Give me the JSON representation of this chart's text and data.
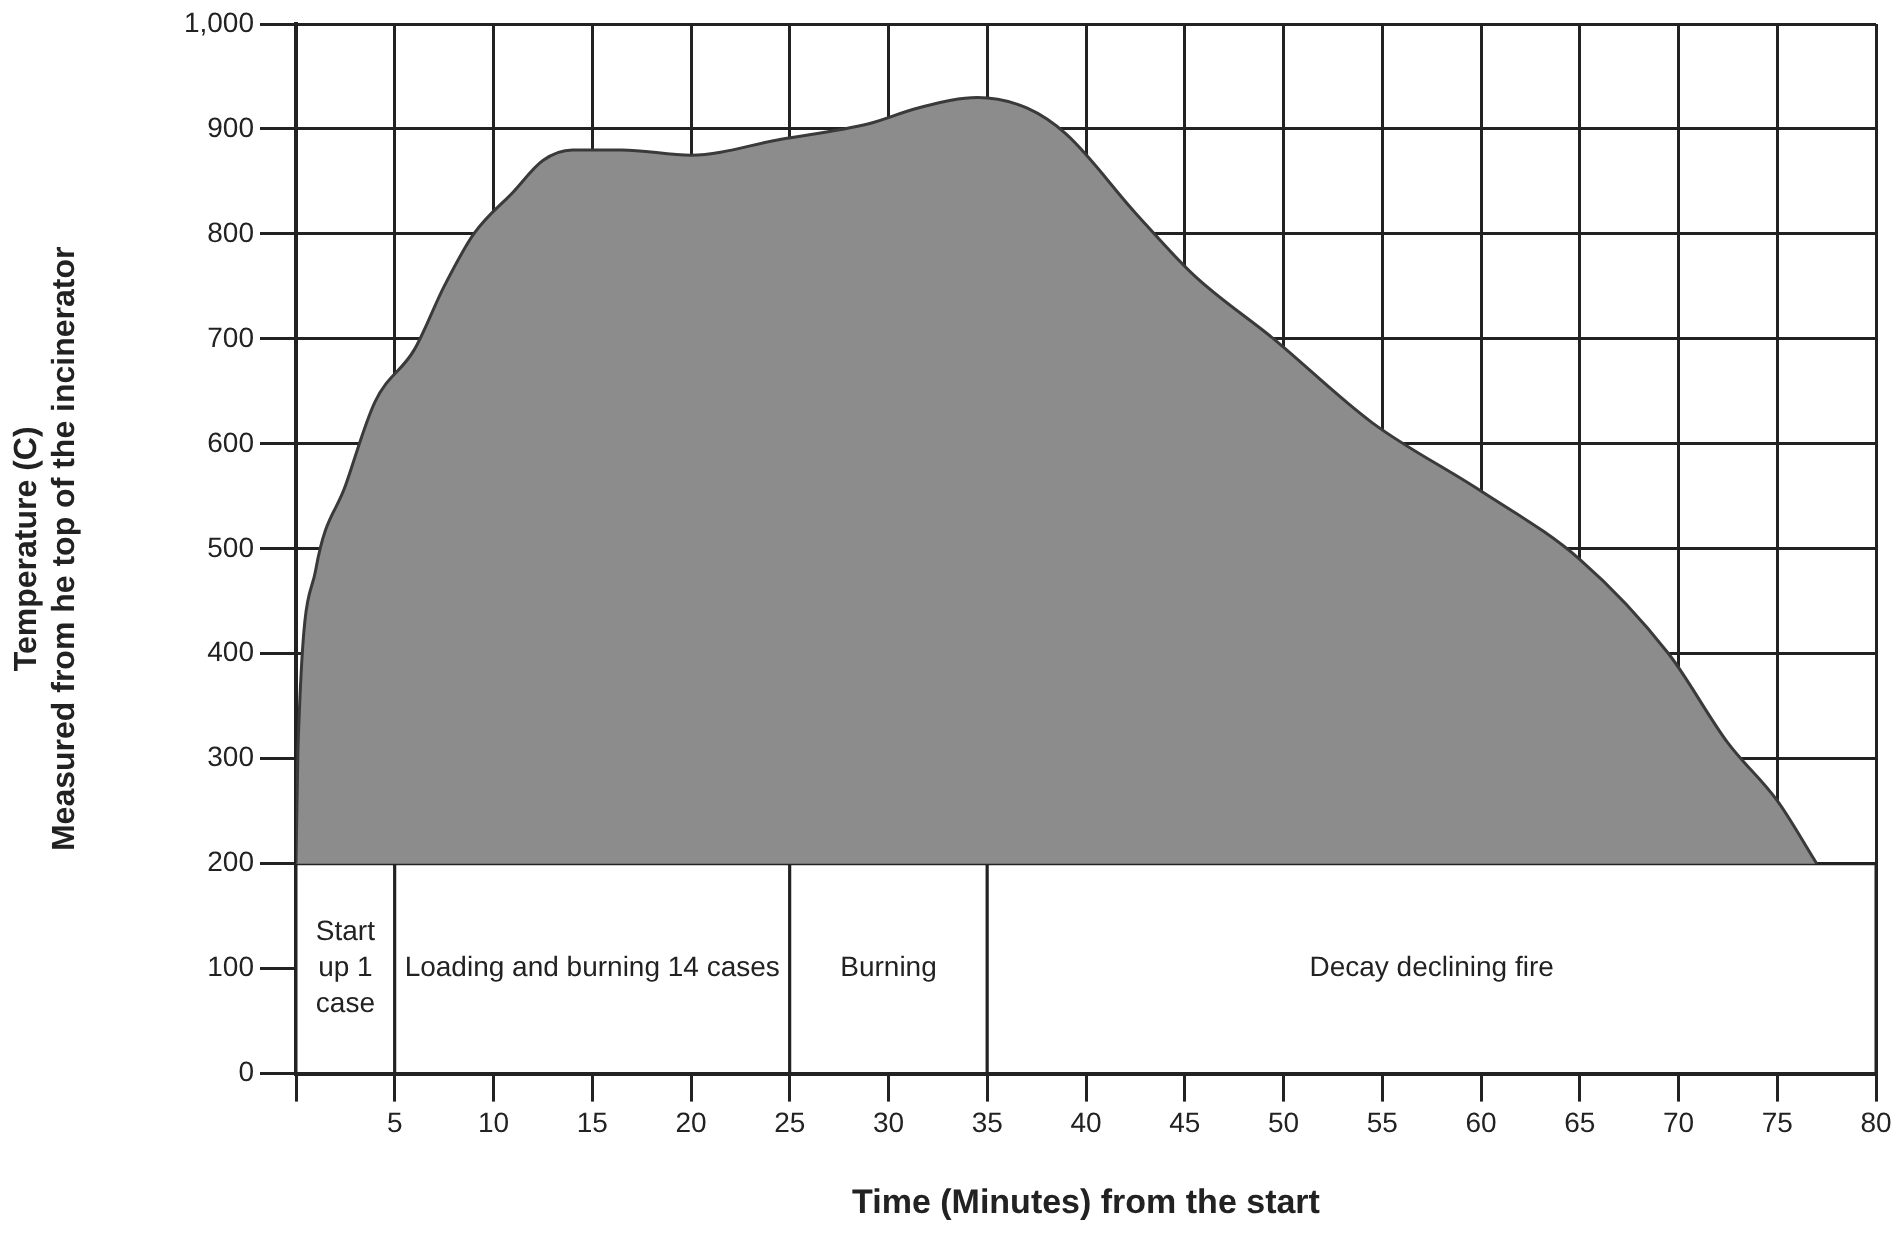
{
  "chart_data": {
    "type": "area",
    "xlabel": "Time (Minutes) from the start",
    "ylabel": "Temperature (C)\nMeasured from he top of the incinerator",
    "x": [
      0,
      0.1,
      1,
      2.5,
      4,
      6,
      7.5,
      9,
      11,
      12.5,
      14,
      16.5,
      20,
      24.5,
      29,
      31.5,
      34.5,
      37,
      39,
      42.5,
      45.5,
      49.5,
      54.5,
      60,
      65,
      69.5,
      72.5,
      75,
      77
    ],
    "series": [
      {
        "color": "#8c8c8c",
        "values": [
          200,
          310,
          480,
          560,
          640,
          690,
          750,
          800,
          840,
          870,
          880,
          880,
          875,
          890,
          905,
          920,
          930,
          920,
          895,
          820,
          760,
          700,
          620,
          555,
          490,
          400,
          315,
          260,
          200
        ]
      }
    ],
    "xlim": [
      0,
      80
    ],
    "xticks": [
      {
        "value": 0,
        "label": null
      },
      5,
      10,
      15,
      20,
      25,
      30,
      35,
      40,
      45,
      50,
      55,
      60,
      65,
      70,
      75,
      80
    ],
    "ylim": [
      0,
      1000
    ],
    "yticks": [
      0,
      100,
      200,
      300,
      400,
      500,
      600,
      700,
      800,
      900,
      {
        "value": 1000,
        "label": "1,000"
      }
    ],
    "grid": true,
    "legend": false,
    "marker": "none",
    "line_style": "solid",
    "bands": [
      {
        "axis": "x",
        "from": 0,
        "to": 5,
        "label": "Start up 1 case",
        "color": "#ffffff"
      },
      {
        "axis": "x",
        "from": 5,
        "to": 25,
        "label": "Loading and burning 14 cases",
        "color": "#ffffff"
      },
      {
        "axis": "x",
        "from": 25,
        "to": 35,
        "label": "Burning",
        "color": "#ffffff"
      },
      {
        "axis": "x",
        "from": 35,
        "to": 80,
        "label": "Decay declining fire",
        "color": "#ffffff"
      }
    ]
  }
}
